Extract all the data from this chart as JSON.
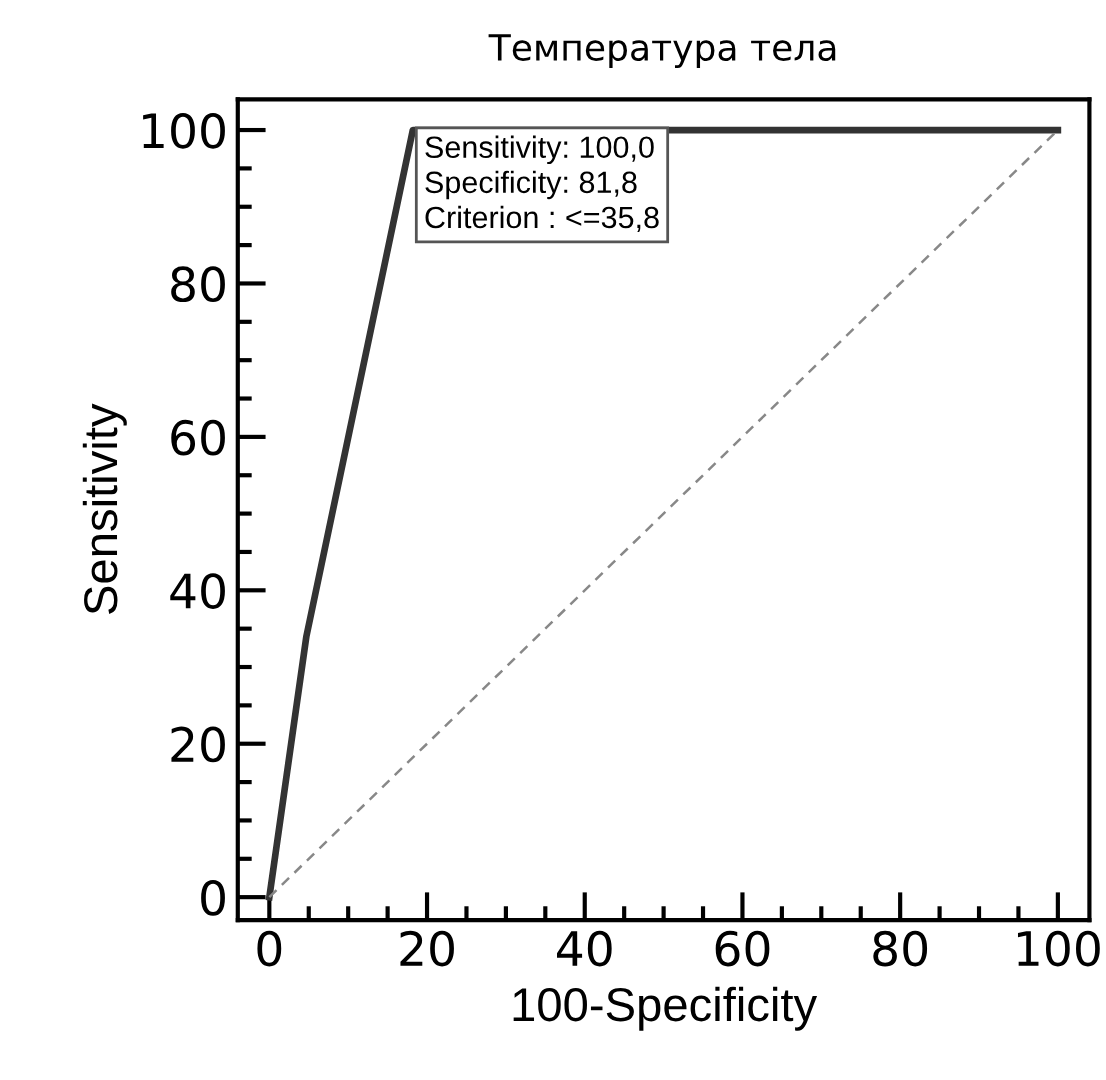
{
  "chart_data": {
    "type": "line",
    "title": "Температура тела",
    "xlabel": "100-Specificity",
    "ylabel": "Sensitivity",
    "xlim": [
      -4,
      104
    ],
    "ylim": [
      -3,
      104
    ],
    "xticks": [
      0,
      20,
      40,
      60,
      80,
      100
    ],
    "yticks": [
      0,
      20,
      40,
      60,
      80,
      100
    ],
    "grid": false,
    "legend": false,
    "marker": "none",
    "series": [
      {
        "x": [
          0,
          0,
          4.7,
          18.2,
          100
        ],
        "values": [
          0,
          0,
          34,
          100,
          100
        ],
        "color": "#333333",
        "line_style": "solid"
      },
      {
        "x": [
          0,
          100
        ],
        "values": [
          0,
          100
        ],
        "color": "#888888",
        "line_style": "dashed"
      }
    ],
    "annotations": [
      {
        "text": "Sensitivity: 100,0\nSpecificity: 81,8\nCriterion : <=35,8",
        "x": 18.2,
        "y": 100
      }
    ]
  }
}
